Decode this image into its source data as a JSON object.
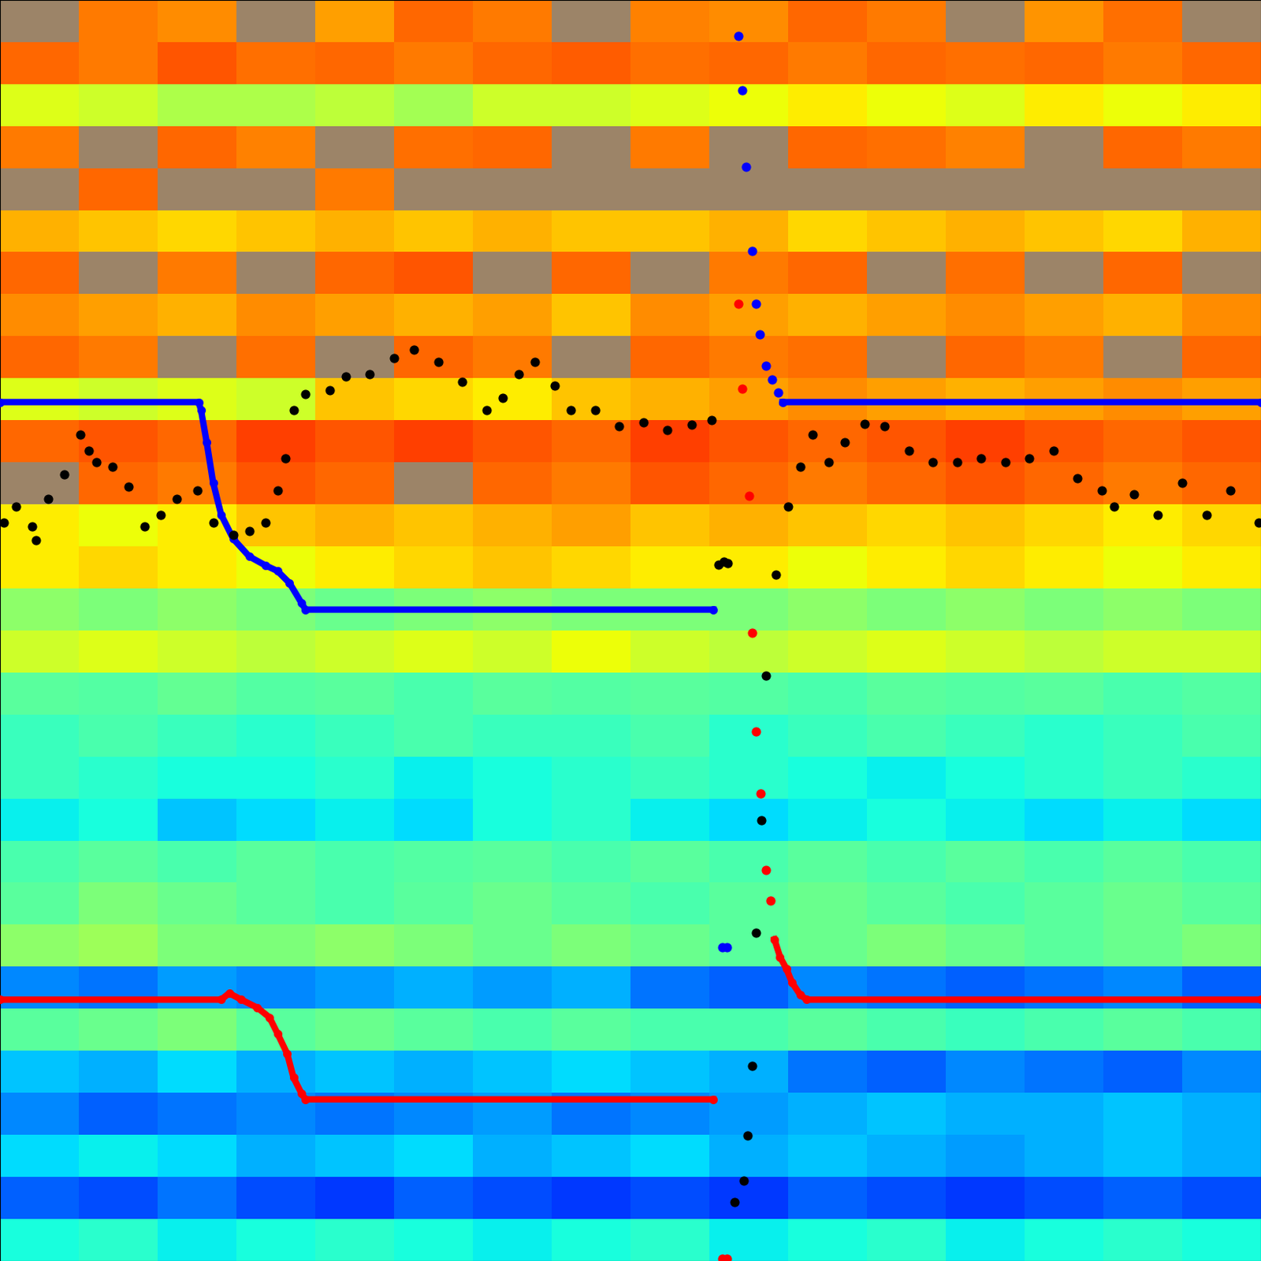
{
  "chart_data": {
    "type": "heatmap",
    "xlim": [
      0,
      1568
    ],
    "ylim": [
      1568,
      0
    ],
    "xticks": [],
    "yticks": [],
    "tick_labels": false,
    "grid": false,
    "zlim": [
      0,
      1
    ],
    "cells": [
      [
        null,
        0.78,
        0.76,
        null,
        0.74,
        0.8,
        0.78,
        null,
        0.77,
        0.76,
        0.8,
        0.78,
        null,
        0.75,
        0.79,
        null
      ],
      [
        0.8,
        0.78,
        0.82,
        0.79,
        0.8,
        0.78,
        0.8,
        0.81,
        0.79,
        0.8,
        0.78,
        0.8,
        0.79,
        0.8,
        0.78,
        0.8
      ],
      [
        0.62,
        0.6,
        0.56,
        0.56,
        0.58,
        0.55,
        0.6,
        0.6,
        0.62,
        0.64,
        0.66,
        0.64,
        0.62,
        0.66,
        0.64,
        0.66
      ],
      [
        0.78,
        null,
        0.8,
        0.77,
        null,
        0.79,
        0.8,
        null,
        0.78,
        null,
        0.8,
        0.79,
        0.77,
        null,
        0.8,
        0.78
      ],
      [
        null,
        0.8,
        null,
        null,
        0.78,
        null,
        null,
        null,
        null,
        null,
        null,
        null,
        null,
        null,
        null,
        null
      ],
      [
        0.72,
        0.7,
        0.68,
        0.7,
        0.72,
        0.7,
        0.72,
        0.7,
        0.7,
        0.72,
        0.68,
        0.7,
        0.72,
        0.7,
        0.68,
        0.72
      ],
      [
        0.8,
        null,
        0.78,
        null,
        0.8,
        0.82,
        null,
        0.8,
        null,
        0.78,
        0.8,
        null,
        0.79,
        null,
        0.8,
        null
      ],
      [
        0.76,
        0.74,
        0.72,
        0.76,
        0.74,
        0.72,
        0.74,
        0.7,
        0.76,
        0.74,
        0.72,
        0.74,
        0.76,
        0.74,
        0.72,
        0.76
      ],
      [
        0.8,
        0.78,
        null,
        0.79,
        null,
        0.8,
        0.78,
        null,
        0.8,
        0.78,
        0.79,
        null,
        0.8,
        0.78,
        null,
        0.8
      ],
      [
        0.62,
        0.6,
        0.62,
        0.6,
        0.7,
        0.68,
        0.66,
        0.7,
        0.72,
        0.74,
        0.76,
        0.74,
        0.72,
        0.74,
        0.76,
        0.74
      ],
      [
        0.8,
        0.82,
        0.8,
        0.84,
        0.82,
        0.84,
        0.82,
        0.8,
        0.84,
        0.82,
        0.8,
        0.82,
        0.84,
        0.82,
        0.8,
        0.82
      ],
      [
        null,
        0.8,
        0.78,
        0.82,
        0.8,
        null,
        0.8,
        0.78,
        0.82,
        0.8,
        0.78,
        0.8,
        0.82,
        0.8,
        0.78,
        0.8
      ],
      [
        0.66,
        0.64,
        0.66,
        0.7,
        0.72,
        0.7,
        0.72,
        0.74,
        0.7,
        0.72,
        0.7,
        0.68,
        0.7,
        0.68,
        0.66,
        0.68
      ],
      [
        0.66,
        0.68,
        0.66,
        0.64,
        0.66,
        0.68,
        0.7,
        0.68,
        0.66,
        0.66,
        0.64,
        0.66,
        0.68,
        0.66,
        0.64,
        0.66
      ],
      [
        0.52,
        0.5,
        0.52,
        0.5,
        0.48,
        0.5,
        0.52,
        0.5,
        0.5,
        0.5,
        0.52,
        0.5,
        0.52,
        0.5,
        0.52,
        0.5
      ],
      [
        0.6,
        0.62,
        0.6,
        0.58,
        0.6,
        0.62,
        0.6,
        0.64,
        0.6,
        0.58,
        0.6,
        0.62,
        0.6,
        0.58,
        0.6,
        0.6
      ],
      [
        0.46,
        0.45,
        0.47,
        0.45,
        0.46,
        0.44,
        0.46,
        0.45,
        0.46,
        0.45,
        0.44,
        0.46,
        0.45,
        0.46,
        0.44,
        0.45
      ],
      [
        0.42,
        0.44,
        0.42,
        0.4,
        0.42,
        0.44,
        0.42,
        0.42,
        0.44,
        0.4,
        0.42,
        0.44,
        0.42,
        0.4,
        0.42,
        0.44
      ],
      [
        0.42,
        0.4,
        0.38,
        0.38,
        0.4,
        0.36,
        0.38,
        0.4,
        0.42,
        0.4,
        0.38,
        0.36,
        0.38,
        0.4,
        0.42,
        0.4
      ],
      [
        0.36,
        0.38,
        0.32,
        0.34,
        0.36,
        0.34,
        0.38,
        0.4,
        0.36,
        0.34,
        0.36,
        0.38,
        0.36,
        0.34,
        0.36,
        0.34
      ],
      [
        0.44,
        0.46,
        0.44,
        0.46,
        0.44,
        0.45,
        0.46,
        0.44,
        0.46,
        0.44,
        0.46,
        0.44,
        0.46,
        0.44,
        0.46,
        0.44
      ],
      [
        0.46,
        0.5,
        0.48,
        0.46,
        0.44,
        0.46,
        0.48,
        0.46,
        0.44,
        0.46,
        0.48,
        0.46,
        0.44,
        0.46,
        0.48,
        0.46
      ],
      [
        0.52,
        0.54,
        0.5,
        0.5,
        0.52,
        0.5,
        0.48,
        0.5,
        0.48,
        0.46,
        0.48,
        0.5,
        0.48,
        0.46,
        0.48,
        0.5
      ],
      [
        0.26,
        0.24,
        0.28,
        0.26,
        0.28,
        0.3,
        0.28,
        0.3,
        0.24,
        0.22,
        0.26,
        0.24,
        0.22,
        0.24,
        0.26,
        0.22
      ],
      [
        0.46,
        0.48,
        0.5,
        0.46,
        0.48,
        0.46,
        0.44,
        0.46,
        0.44,
        0.44,
        0.46,
        0.44,
        0.42,
        0.44,
        0.46,
        0.44
      ],
      [
        0.32,
        0.3,
        0.34,
        0.3,
        0.32,
        0.3,
        0.32,
        0.34,
        0.32,
        0.3,
        0.24,
        0.22,
        0.26,
        0.24,
        0.22,
        0.26
      ],
      [
        0.26,
        0.22,
        0.24,
        0.26,
        0.24,
        0.26,
        0.28,
        0.24,
        0.26,
        0.28,
        0.3,
        0.32,
        0.3,
        0.3,
        0.32,
        0.3
      ],
      [
        0.34,
        0.36,
        0.34,
        0.3,
        0.32,
        0.34,
        0.3,
        0.32,
        0.34,
        0.3,
        0.32,
        0.3,
        0.28,
        0.3,
        0.32,
        0.3
      ],
      [
        0.22,
        0.2,
        0.24,
        0.2,
        0.18,
        0.22,
        0.2,
        0.18,
        0.2,
        0.18,
        0.22,
        0.2,
        0.18,
        0.2,
        0.22,
        0.2
      ],
      [
        0.38,
        0.4,
        0.36,
        0.38,
        0.4,
        0.38,
        0.36,
        0.38,
        0.4,
        0.36,
        0.38,
        0.4,
        0.36,
        0.38,
        0.4,
        0.38
      ]
    ],
    "series": [
      {
        "type": "line",
        "color": "#0000ff",
        "marker": "o",
        "x": [
          0,
          247,
          250,
          257,
          265,
          275,
          290,
          310,
          330,
          345,
          360,
          375,
          380,
          887,
          900,
          973,
          1568
        ],
        "values": [
          500,
          500,
          510,
          550,
          600,
          640,
          670,
          692,
          703,
          710,
          725,
          750,
          758,
          758,
          null,
          500,
          500
        ]
      },
      {
        "type": "scatter",
        "color": "#0000ff",
        "marker": "o",
        "x": [
          898,
          904,
          918,
          923,
          928,
          935,
          940,
          945,
          952,
          960,
          968
        ],
        "values": [
          1178,
          1178,
          45,
          112,
          207,
          312,
          378,
          416,
          455,
          472,
          488
        ]
      },
      {
        "type": "line",
        "color": "#ff0000",
        "marker": "o",
        "x": [
          0,
          275,
          285,
          300,
          320,
          335,
          345,
          357,
          365,
          375,
          380,
          887,
          900,
          963,
          970,
          978,
          985,
          995,
          1003,
          1568
        ],
        "values": [
          1243,
          1243,
          1235,
          1243,
          1253,
          1265,
          1285,
          1310,
          1340,
          1360,
          1367,
          1367,
          null,
          1168,
          1190,
          1205,
          1222,
          1237,
          1243,
          1243
        ]
      },
      {
        "type": "scatter",
        "color": "#ff0000",
        "marker": "o",
        "x": [
          898,
          904,
          918,
          923,
          931,
          935,
          940,
          946,
          952,
          958
        ],
        "values": [
          1565,
          1565,
          378,
          483,
          617,
          787,
          910,
          987,
          1082,
          1120
        ]
      },
      {
        "type": "scatter",
        "color": "#000000",
        "marker": "o",
        "x": [
          5,
          20,
          40,
          45,
          60,
          80,
          100,
          110,
          120,
          140,
          160,
          180,
          200,
          220,
          245,
          265,
          290,
          310,
          330,
          345,
          355,
          365,
          380,
          410,
          430,
          460,
          490,
          515,
          545,
          575,
          605,
          625,
          645,
          665,
          690,
          710,
          740,
          770,
          800,
          830,
          860,
          885,
          893,
          900,
          905,
          965,
          980,
          995,
          1010,
          1030,
          1050,
          1075,
          1100,
          1130,
          1160,
          1190,
          1220,
          1250,
          1280,
          1310,
          1340,
          1370,
          1385,
          1410,
          1440,
          1470,
          1500,
          1530,
          1565,
          952,
          947,
          940,
          935,
          930,
          925,
          913
        ],
        "values": [
          650,
          630,
          655,
          672,
          620,
          590,
          540,
          560,
          575,
          580,
          605,
          655,
          640,
          620,
          610,
          650,
          665,
          660,
          650,
          610,
          570,
          510,
          490,
          485,
          468,
          465,
          445,
          435,
          450,
          475,
          510,
          495,
          465,
          450,
          480,
          510,
          510,
          530,
          525,
          535,
          528,
          522,
          702,
          698,
          700,
          715,
          630,
          580,
          540,
          575,
          550,
          527,
          530,
          560,
          575,
          575,
          570,
          575,
          570,
          560,
          595,
          610,
          630,
          615,
          640,
          600,
          640,
          610,
          650,
          840,
          1020,
          1160,
          1325,
          1412,
          1468,
          1495
        ]
      }
    ]
  }
}
